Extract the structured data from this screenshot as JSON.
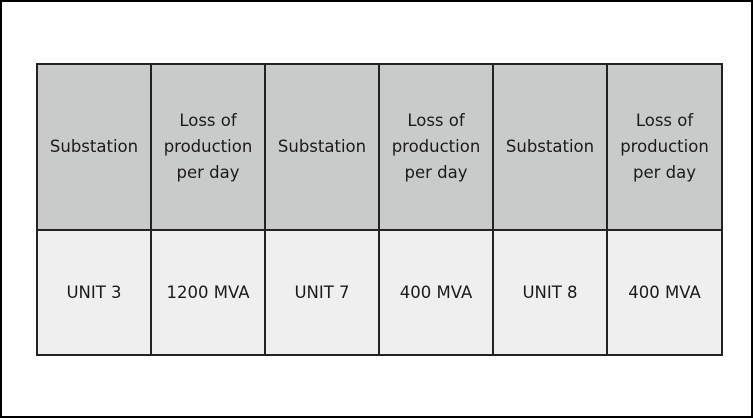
{
  "table": {
    "headers": [
      "Substation",
      "Loss of production per day",
      "Substation",
      "Loss of production per day",
      "Substation",
      "Loss of production per day"
    ],
    "rows": [
      [
        "UNIT 3",
        "1200 MVA",
        "UNIT 7",
        "400 MVA",
        "UNIT 8",
        "400 MVA"
      ]
    ]
  }
}
